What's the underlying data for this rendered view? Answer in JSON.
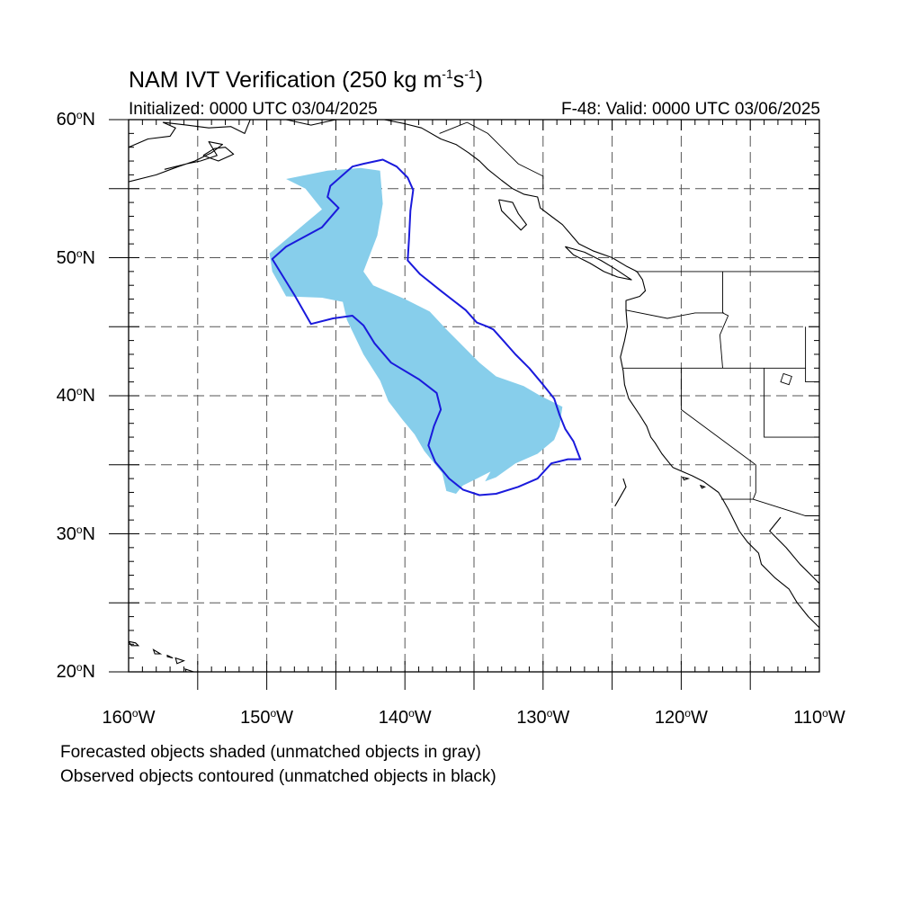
{
  "header": {
    "title_text": "NAM IVT Verification (250 kg m",
    "title_sup1": "-1",
    "title_mid": "s",
    "title_sup2": "-1",
    "title_end": ")",
    "initialized": "Initialized: 0000 UTC 03/04/2025",
    "valid": "F-48: Valid: 0000 UTC 03/06/2025"
  },
  "map": {
    "projection": "cylindrical-equidistant",
    "lon_range": [
      -160,
      -110
    ],
    "lat_range": [
      20,
      60
    ],
    "grid": true,
    "grid_step_deg": 5,
    "lat_labels": [
      {
        "value": 60,
        "num": "60",
        "hemi": "N"
      },
      {
        "value": 50,
        "num": "50",
        "hemi": "N"
      },
      {
        "value": 40,
        "num": "40",
        "hemi": "N"
      },
      {
        "value": 30,
        "num": "30",
        "hemi": "N"
      },
      {
        "value": 20,
        "num": "20",
        "hemi": "N"
      }
    ],
    "lon_labels": [
      {
        "value": -160,
        "num": "160",
        "hemi": "W"
      },
      {
        "value": -150,
        "num": "150",
        "hemi": "W"
      },
      {
        "value": -140,
        "num": "140",
        "hemi": "W"
      },
      {
        "value": -130,
        "num": "130",
        "hemi": "W"
      },
      {
        "value": -120,
        "num": "120",
        "hemi": "W"
      },
      {
        "value": -110,
        "num": "110",
        "hemi": "W"
      }
    ],
    "colors": {
      "forecast_fill": "#87ceeb",
      "observed_contour": "#1a1adc",
      "coast": "#000000",
      "grid": "#555555"
    },
    "forecast_object": [
      [
        -148.6,
        55.7
      ],
      [
        -145.6,
        56.3
      ],
      [
        -143.2,
        56.5
      ],
      [
        -141.8,
        56.3
      ],
      [
        -141.6,
        53.9
      ],
      [
        -142.0,
        51.6
      ],
      [
        -143.0,
        49.0
      ],
      [
        -142.3,
        48.0
      ],
      [
        -140.0,
        47.0
      ],
      [
        -138.2,
        46.1
      ],
      [
        -137.0,
        44.8
      ],
      [
        -135.8,
        43.6
      ],
      [
        -134.6,
        42.4
      ],
      [
        -133.4,
        41.4
      ],
      [
        -131.4,
        40.7
      ],
      [
        -130.2,
        40.0
      ],
      [
        -128.6,
        39.2
      ],
      [
        -128.8,
        37.8
      ],
      [
        -129.2,
        36.8
      ],
      [
        -130.4,
        35.8
      ],
      [
        -132.0,
        35.1
      ],
      [
        -133.4,
        34.1
      ],
      [
        -134.2,
        33.8
      ],
      [
        -133.8,
        34.5
      ],
      [
        -134.8,
        34.0
      ],
      [
        -135.8,
        33.5
      ],
      [
        -136.3,
        32.9
      ],
      [
        -137.0,
        33.1
      ],
      [
        -137.3,
        34.4
      ],
      [
        -138.6,
        36.0
      ],
      [
        -139.3,
        37.2
      ],
      [
        -140.2,
        38.3
      ],
      [
        -141.2,
        39.6
      ],
      [
        -141.8,
        41.1
      ],
      [
        -143.0,
        43.0
      ],
      [
        -144.2,
        45.5
      ],
      [
        -144.5,
        46.8
      ],
      [
        -146.0,
        47.1
      ],
      [
        -148.6,
        47.2
      ],
      [
        -149.6,
        49.0
      ],
      [
        -149.8,
        50.3
      ],
      [
        -147.2,
        52.5
      ],
      [
        -146.0,
        53.5
      ],
      [
        -147.2,
        55.0
      ],
      [
        -148.6,
        55.7
      ]
    ],
    "observed_object": [
      [
        -143.0,
        56.8
      ],
      [
        -141.6,
        57.1
      ],
      [
        -140.6,
        56.6
      ],
      [
        -139.8,
        55.8
      ],
      [
        -139.4,
        54.9
      ],
      [
        -139.6,
        53.4
      ],
      [
        -139.7,
        51.4
      ],
      [
        -139.8,
        49.8
      ],
      [
        -138.9,
        48.8
      ],
      [
        -137.4,
        47.6
      ],
      [
        -135.6,
        46.2
      ],
      [
        -134.8,
        45.3
      ],
      [
        -134.0,
        45.0
      ],
      [
        -133.6,
        44.8
      ],
      [
        -132.8,
        43.9
      ],
      [
        -132.0,
        43.0
      ],
      [
        -131.0,
        42.0
      ],
      [
        -130.0,
        40.8
      ],
      [
        -129.2,
        39.8
      ],
      [
        -128.8,
        38.6
      ],
      [
        -128.4,
        37.6
      ],
      [
        -127.8,
        36.7
      ],
      [
        -127.3,
        35.4
      ],
      [
        -128.2,
        35.4
      ],
      [
        -129.4,
        35.1
      ],
      [
        -130.4,
        34.0
      ],
      [
        -131.8,
        33.4
      ],
      [
        -133.4,
        32.9
      ],
      [
        -134.6,
        32.8
      ],
      [
        -135.8,
        33.2
      ],
      [
        -136.8,
        34.0
      ],
      [
        -137.8,
        35.2
      ],
      [
        -138.3,
        36.4
      ],
      [
        -137.9,
        37.8
      ],
      [
        -137.4,
        39.0
      ],
      [
        -137.7,
        40.2
      ],
      [
        -139.0,
        41.2
      ],
      [
        -141.0,
        42.4
      ],
      [
        -142.2,
        43.8
      ],
      [
        -143.0,
        45.1
      ],
      [
        -143.8,
        45.8
      ],
      [
        -145.2,
        45.6
      ],
      [
        -146.8,
        45.2
      ],
      [
        -148.0,
        47.3
      ],
      [
        -149.6,
        49.9
      ],
      [
        -148.6,
        50.8
      ],
      [
        -146.0,
        52.2
      ],
      [
        -144.8,
        53.6
      ],
      [
        -145.6,
        54.4
      ],
      [
        -145.4,
        55.2
      ],
      [
        -143.8,
        56.6
      ],
      [
        -143.0,
        56.8
      ]
    ],
    "coastlines": [
      [
        [
          -160.0,
          58.0
        ],
        [
          -158.6,
          58.6
        ],
        [
          -157.0,
          58.8
        ],
        [
          -156.6,
          59.4
        ],
        [
          -157.5,
          59.8
        ],
        [
          -155.8,
          59.6
        ],
        [
          -154.2,
          59.4
        ],
        [
          -152.6,
          59.5
        ],
        [
          -151.6,
          59.0
        ],
        [
          -151.2,
          60.0
        ]
      ],
      [
        [
          -160.0,
          55.5
        ],
        [
          -158.0,
          56.0
        ],
        [
          -156.4,
          56.6
        ],
        [
          -155.2,
          57.0
        ],
        [
          -154.0,
          57.6
        ],
        [
          -153.2,
          58.2
        ],
        [
          -154.2,
          58.4
        ],
        [
          -153.6,
          57.4
        ],
        [
          -154.8,
          57.0
        ],
        [
          -155.8,
          56.8
        ],
        [
          -157.4,
          56.4
        ]
      ],
      [
        [
          -154.6,
          57.4
        ],
        [
          -153.5,
          57.0
        ],
        [
          -152.4,
          57.5
        ],
        [
          -153.0,
          58.0
        ],
        [
          -153.8,
          57.9
        ],
        [
          -154.6,
          57.4
        ]
      ],
      [
        [
          -148.6,
          60.0
        ],
        [
          -146.8,
          59.6
        ],
        [
          -145.0,
          60.0
        ]
      ],
      [
        [
          -141.5,
          60.0
        ],
        [
          -140.0,
          59.7
        ],
        [
          -138.8,
          59.4
        ],
        [
          -137.4,
          58.6
        ],
        [
          -136.3,
          58.2
        ],
        [
          -135.4,
          57.6
        ],
        [
          -134.6,
          57.0
        ],
        [
          -134.0,
          56.4
        ],
        [
          -133.0,
          55.6
        ],
        [
          -132.2,
          55.0
        ],
        [
          -131.4,
          54.6
        ],
        [
          -130.4,
          54.4
        ],
        [
          -130.2,
          53.6
        ],
        [
          -129.4,
          53.0
        ],
        [
          -128.6,
          52.4
        ],
        [
          -128.0,
          51.7
        ],
        [
          -127.4,
          51.0
        ],
        [
          -126.4,
          50.5
        ],
        [
          -125.0,
          50.0
        ],
        [
          -124.0,
          49.4
        ],
        [
          -123.2,
          49.0
        ],
        [
          -122.8,
          48.4
        ],
        [
          -122.6,
          47.6
        ],
        [
          -123.0,
          47.2
        ],
        [
          -124.0,
          46.9
        ],
        [
          -124.0,
          46.2
        ],
        [
          -123.9,
          45.0
        ],
        [
          -124.1,
          44.0
        ],
        [
          -124.4,
          42.8
        ],
        [
          -124.2,
          41.8
        ],
        [
          -124.1,
          40.8
        ],
        [
          -123.8,
          39.8
        ],
        [
          -123.0,
          38.6
        ],
        [
          -122.5,
          37.8
        ],
        [
          -122.2,
          37.0
        ],
        [
          -121.9,
          36.6
        ],
        [
          -121.4,
          35.8
        ],
        [
          -120.6,
          34.8
        ],
        [
          -119.2,
          34.2
        ],
        [
          -118.4,
          33.8
        ],
        [
          -117.3,
          33.0
        ],
        [
          -117.0,
          32.5
        ],
        [
          -116.6,
          31.8
        ],
        [
          -116.2,
          31.0
        ],
        [
          -115.8,
          30.2
        ],
        [
          -115.2,
          29.4
        ],
        [
          -114.4,
          28.6
        ],
        [
          -114.2,
          27.8
        ],
        [
          -113.2,
          26.8
        ],
        [
          -112.2,
          26.0
        ],
        [
          -111.6,
          25.0
        ],
        [
          -110.8,
          24.0
        ],
        [
          -110.0,
          23.2
        ]
      ],
      [
        [
          -133.2,
          54.2
        ],
        [
          -132.2,
          54.0
        ],
        [
          -131.8,
          53.2
        ],
        [
          -131.2,
          52.4
        ],
        [
          -131.6,
          52.0
        ],
        [
          -132.4,
          52.8
        ],
        [
          -133.0,
          53.4
        ],
        [
          -133.2,
          54.2
        ]
      ],
      [
        [
          -128.4,
          50.8
        ],
        [
          -127.0,
          50.4
        ],
        [
          -125.8,
          49.8
        ],
        [
          -124.8,
          49.2
        ],
        [
          -123.6,
          48.4
        ],
        [
          -124.6,
          48.6
        ],
        [
          -125.6,
          49.0
        ],
        [
          -126.6,
          49.6
        ],
        [
          -127.8,
          50.2
        ],
        [
          -128.4,
          50.8
        ]
      ],
      [
        [
          -124.8,
          32.0
        ],
        [
          -124.0,
          33.4
        ],
        [
          -124.2,
          34.0
        ]
      ],
      [
        [
          -112.8,
          31.2
        ],
        [
          -113.6,
          30.2
        ],
        [
          -112.4,
          29.0
        ],
        [
          -111.4,
          27.8
        ],
        [
          -110.6,
          27.0
        ],
        [
          -109.6,
          26.0
        ],
        [
          -109.0,
          25.0
        ],
        [
          -108.2,
          24.0
        ],
        [
          -110.0,
          24.0
        ],
        [
          -109.6,
          23.2
        ],
        [
          -110.0,
          22.9
        ]
      ]
    ],
    "islands": [
      [
        [
          -160.0,
          22.2
        ],
        [
          -159.5,
          22.1
        ],
        [
          -159.3,
          21.9
        ],
        [
          -159.8,
          21.9
        ],
        [
          -160.0,
          22.2
        ]
      ],
      [
        [
          -158.2,
          21.6
        ],
        [
          -157.7,
          21.3
        ],
        [
          -158.1,
          21.3
        ],
        [
          -158.2,
          21.6
        ]
      ],
      [
        [
          -157.2,
          21.2
        ],
        [
          -156.8,
          21.0
        ],
        [
          -157.2,
          21.1
        ],
        [
          -157.2,
          21.2
        ]
      ],
      [
        [
          -156.6,
          21.0
        ],
        [
          -156.0,
          20.8
        ],
        [
          -156.5,
          20.6
        ],
        [
          -156.6,
          21.0
        ]
      ],
      [
        [
          -155.9,
          20.2
        ],
        [
          -155.0,
          19.9
        ],
        [
          -154.8,
          19.5
        ],
        [
          -155.6,
          19.2
        ],
        [
          -155.9,
          20.2
        ]
      ],
      [
        [
          -118.6,
          33.5
        ],
        [
          -118.3,
          33.4
        ],
        [
          -118.5,
          33.3
        ],
        [
          -118.6,
          33.5
        ]
      ],
      [
        [
          -119.9,
          34.1
        ],
        [
          -119.5,
          34.0
        ],
        [
          -119.8,
          33.9
        ],
        [
          -119.9,
          34.1
        ]
      ]
    ],
    "boundaries": [
      [
        [
          -123.3,
          49.0
        ],
        [
          -110.0,
          49.0
        ]
      ],
      [
        [
          -117.0,
          49.0
        ],
        [
          -117.0,
          46.0
        ],
        [
          -116.6,
          45.8
        ],
        [
          -117.2,
          44.4
        ],
        [
          -117.0,
          42.0
        ]
      ],
      [
        [
          -124.0,
          46.2
        ],
        [
          -121.0,
          45.6
        ],
        [
          -119.0,
          46.0
        ],
        [
          -116.9,
          46.0
        ]
      ],
      [
        [
          -124.2,
          42.0
        ],
        [
          -111.0,
          42.0
        ]
      ],
      [
        [
          -120.0,
          42.0
        ],
        [
          -120.0,
          39.0
        ],
        [
          -114.6,
          35.0
        ],
        [
          -114.6,
          33.0
        ],
        [
          -114.8,
          32.5
        ]
      ],
      [
        [
          -114.0,
          42.0
        ],
        [
          -114.0,
          37.0
        ],
        [
          -110.0,
          37.0
        ]
      ],
      [
        [
          -117.1,
          32.5
        ],
        [
          -114.8,
          32.5
        ],
        [
          -111.0,
          31.3
        ],
        [
          -110.0,
          31.3
        ]
      ],
      [
        [
          -111.0,
          45.0
        ],
        [
          -111.0,
          41.0
        ],
        [
          -110.0,
          41.0
        ]
      ],
      [
        [
          -141.0,
          60.0
        ],
        [
          -141.0,
          59.8
        ]
      ],
      [
        [
          -137.5,
          59.0
        ],
        [
          -135.5,
          59.8
        ],
        [
          -134.0,
          59.0
        ],
        [
          -133.0,
          58.0
        ],
        [
          -131.8,
          56.8
        ],
        [
          -130.0,
          55.9
        ],
        [
          -130.0,
          55.0
        ]
      ]
    ],
    "lake": [
      [
        -112.6,
        41.6
      ],
      [
        -112.0,
        41.4
      ],
      [
        -112.2,
        40.8
      ],
      [
        -112.8,
        41.0
      ],
      [
        -112.6,
        41.6
      ]
    ]
  },
  "footer": {
    "line1": "Forecasted objects shaded (unmatched objects in gray)",
    "line2": "Observed objects contoured (unmatched objects in black)"
  }
}
